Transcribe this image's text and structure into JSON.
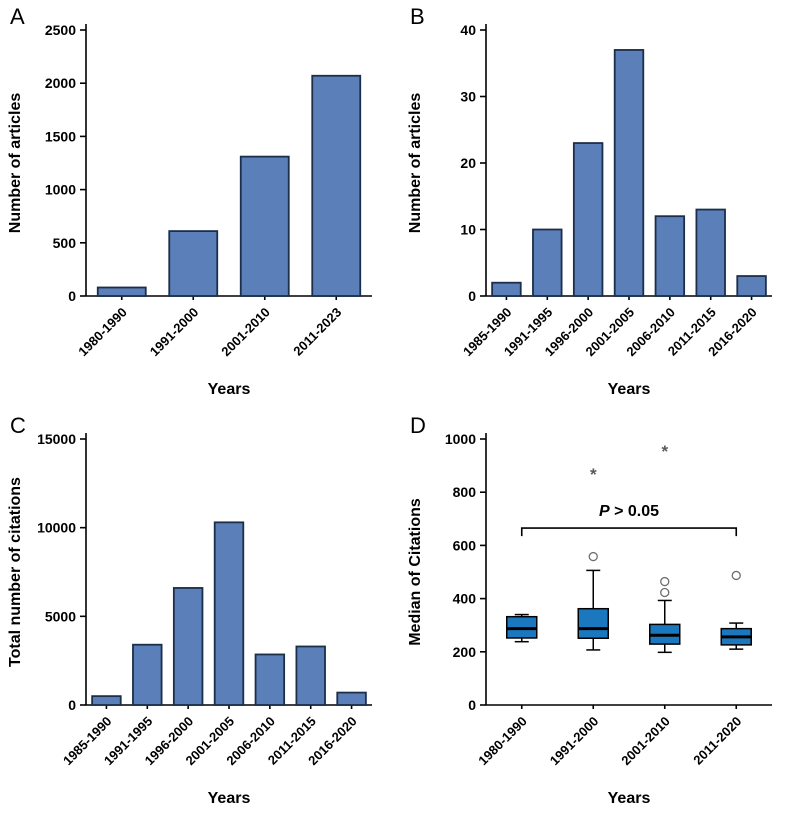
{
  "colors": {
    "bar_fill": "#5b7fb8",
    "bar_stroke": "#1c2e4a",
    "box_fill": "#1b78be",
    "axis": "#000000",
    "text": "#000000",
    "outlier_stroke": "#6f6f6f",
    "star": "#595959"
  },
  "chart_data": [
    {
      "panel": "A",
      "type": "bar",
      "title": "",
      "xlabel": "Years",
      "ylabel": "Number of articles",
      "categories": [
        "1980-1990",
        "1991-2000",
        "2001-2010",
        "2011-2023"
      ],
      "values": [
        80,
        610,
        1310,
        2070
      ],
      "ylim": [
        0,
        2500
      ],
      "yticks": [
        0,
        500,
        1000,
        1500,
        2000,
        2500
      ]
    },
    {
      "panel": "B",
      "type": "bar",
      "title": "",
      "xlabel": "Years",
      "ylabel": "Number of articles",
      "categories": [
        "1985-1990",
        "1991-1995",
        "1996-2000",
        "2001-2005",
        "2006-2010",
        "2011-2015",
        "2016-2020"
      ],
      "values": [
        2,
        10,
        23,
        37,
        12,
        13,
        3
      ],
      "ylim": [
        0,
        40
      ],
      "yticks": [
        0,
        10,
        20,
        30,
        40
      ]
    },
    {
      "panel": "C",
      "type": "bar",
      "title": "",
      "xlabel": "Years",
      "ylabel": "Total number of citations",
      "categories": [
        "1985-1990",
        "1991-1995",
        "1996-2000",
        "2001-2005",
        "2006-2010",
        "2011-2015",
        "2016-2020"
      ],
      "values": [
        500,
        3400,
        6600,
        10300,
        2850,
        3300,
        700
      ],
      "ylim": [
        0,
        15000
      ],
      "yticks": [
        0,
        5000,
        10000,
        15000
      ]
    },
    {
      "panel": "D",
      "type": "box",
      "title": "",
      "xlabel": "Years",
      "ylabel": "Median of Citations",
      "categories": [
        "1980-1990",
        "1991-2000",
        "2001-2010",
        "2011-2020"
      ],
      "boxes": [
        {
          "whisker_low": 238,
          "q1": 252,
          "median": 287,
          "q3": 332,
          "whisker_high": 340,
          "outliers": [],
          "stars": []
        },
        {
          "whisker_low": 207,
          "q1": 251,
          "median": 287,
          "q3": 362,
          "whisker_high": 506,
          "outliers": [
            558
          ],
          "stars": [
            869
          ]
        },
        {
          "whisker_low": 198,
          "q1": 229,
          "median": 262,
          "q3": 303,
          "whisker_high": 393,
          "outliers": [
            423,
            464
          ],
          "stars": [
            955
          ]
        },
        {
          "whisker_low": 210,
          "q1": 226,
          "median": 256,
          "q3": 287,
          "whisker_high": 308,
          "outliers": [
            487
          ],
          "stars": []
        }
      ],
      "ylim": [
        0,
        1000
      ],
      "yticks": [
        0,
        200,
        400,
        600,
        800,
        1000
      ],
      "annotation": {
        "label_p": "P",
        "label_rest": " > 0.05",
        "bracket_y": 665
      }
    }
  ]
}
